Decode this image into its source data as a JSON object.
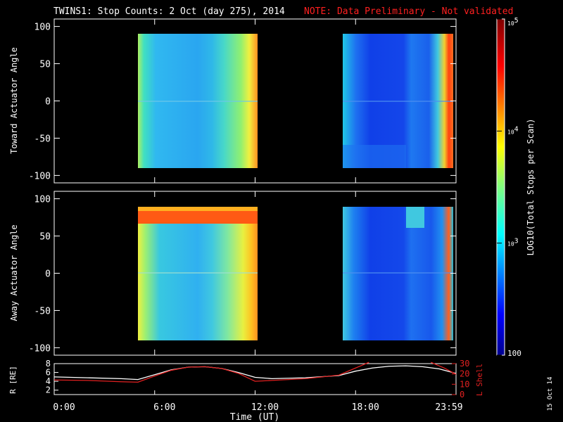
{
  "header": {
    "title": "TWINS1: Stop Counts:  2 Oct (day 275), 2014",
    "note": "NOTE: Data Preliminary - Not validated"
  },
  "footer": {
    "xlabel": "Time (UT)",
    "side_date": "15 Oct 14"
  },
  "colors": {
    "background": "#000000",
    "axes": "#ffffff",
    "note": "#ff2020",
    "lshell": "#e02020",
    "radius": "#ffffff"
  },
  "chart_data": [
    {
      "type": "heatmap",
      "ylabel": "Toward Actuator Angle",
      "ylim": [
        -110,
        110
      ],
      "yticks": [
        100,
        50,
        0,
        -50,
        -100
      ],
      "xlim": [
        0,
        24
      ],
      "xticks": [
        "",
        "",
        "",
        "",
        ""
      ],
      "data_blocks": [
        {
          "t_start": 5.0,
          "t_end": 12.0,
          "angle_range": [
            -88,
            90
          ],
          "log10_counts_typical": 3.0
        },
        {
          "t_start": 17.3,
          "t_end": 24.0,
          "angle_range": [
            -88,
            90
          ],
          "log10_counts_typical": 2.5
        }
      ]
    },
    {
      "type": "heatmap",
      "ylabel": "Away Actuator Angle",
      "ylim": [
        -110,
        110
      ],
      "yticks": [
        100,
        50,
        0,
        -50,
        -100
      ],
      "xlim": [
        0,
        24
      ],
      "xticks": [
        "",
        "",
        "",
        "",
        ""
      ],
      "data_blocks": [
        {
          "t_start": 5.0,
          "t_end": 12.0,
          "angle_range": [
            -88,
            90
          ],
          "log10_counts_typical": 3.2
        },
        {
          "t_start": 17.3,
          "t_end": 24.0,
          "angle_range": [
            -88,
            90
          ],
          "log10_counts_typical": 2.6
        }
      ]
    },
    {
      "type": "line",
      "ylabel": "R [RE]",
      "ylabel_right": "L Shell",
      "xlabel": "Time (UT)",
      "xlim": [
        0,
        24
      ],
      "xticks": [
        "0:00",
        "6:00",
        "12:00",
        "18:00",
        "23:59"
      ],
      "ylim": [
        1,
        8
      ],
      "yticks": [
        8,
        6,
        4,
        2
      ],
      "ylim_right": [
        0,
        30
      ],
      "yticks_right": [
        30,
        20,
        10,
        0
      ],
      "series": [
        {
          "x": [
            0,
            2,
            4,
            5,
            6,
            7,
            8,
            9,
            10,
            11,
            12,
            13,
            15,
            17,
            18,
            19,
            20,
            21,
            22,
            23,
            24
          ],
          "y": [
            5.0,
            4.8,
            4.6,
            4.4,
            5.5,
            6.6,
            7.2,
            7.3,
            6.9,
            6.0,
            4.9,
            4.6,
            4.8,
            5.3,
            6.3,
            7.0,
            7.4,
            7.5,
            7.3,
            6.8,
            5.8
          ]
        },
        {
          "x": [
            0,
            2,
            4,
            5,
            6,
            7,
            8,
            9,
            10,
            11,
            12,
            13,
            15,
            17,
            18,
            18.8
          ],
          "y": [
            4.3,
            4.2,
            3.9,
            3.8,
            5.2,
            6.5,
            7.2,
            7.3,
            6.9,
            5.8,
            4.0,
            4.2,
            4.6,
            5.4,
            7.0,
            8.3
          ]
        },
        {
          "x": [
            22.5,
            23.3,
            24
          ],
          "y": [
            8.3,
            7.0,
            5.6
          ]
        }
      ]
    },
    {
      "type": "colorbar",
      "label": "LOG10(Total Stops per Scan)",
      "scale": "log",
      "range": [
        100,
        100000
      ],
      "tick_labels": [
        "100",
        "10^3",
        "10^4",
        "10^5"
      ],
      "tick_values": [
        100,
        1000,
        10000,
        100000
      ]
    }
  ]
}
